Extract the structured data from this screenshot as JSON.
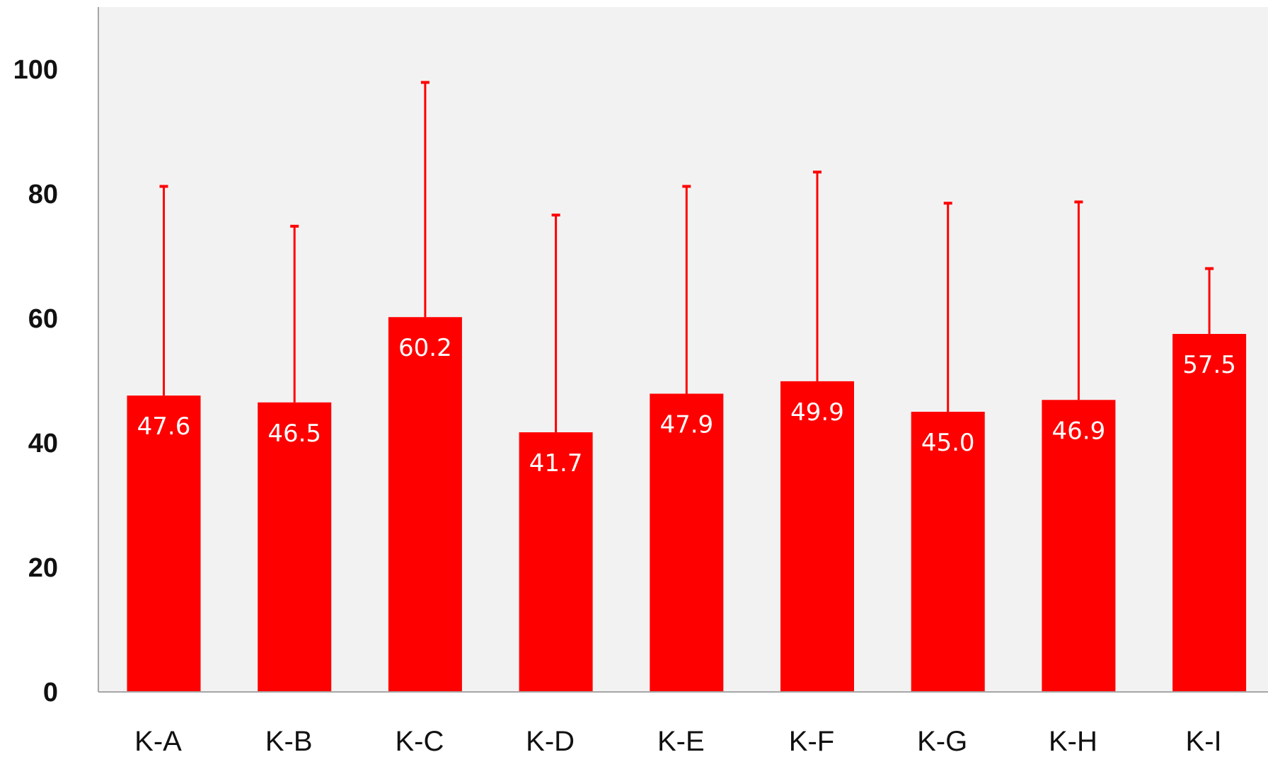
{
  "chart_data": {
    "type": "bar",
    "title": "",
    "xlabel": "",
    "ylabel": "",
    "categories": [
      "K-A",
      "K-B",
      "K-C",
      "K-D",
      "K-E",
      "K-F",
      "K-G",
      "K-H",
      "K-I"
    ],
    "series": [
      {
        "values": [
          47.6,
          46.5,
          60.2,
          41.7,
          47.9,
          49.9,
          45.0,
          46.9,
          57.5
        ],
        "value_labels": [
          "47.6",
          "46.5",
          "60.2",
          "41.7",
          "47.9",
          "49.9",
          "45.0",
          "46.9",
          "57.5"
        ],
        "error_upper": [
          81.2,
          74.8,
          97.9,
          76.6,
          81.2,
          83.5,
          78.5,
          78.7,
          68.0
        ]
      }
    ],
    "ylim": [
      0,
      110
    ],
    "yticks": [
      0,
      20,
      40,
      60,
      80,
      100
    ],
    "ytick_labels": [
      "0",
      "20",
      "40",
      "60",
      "80",
      "100"
    ],
    "grid": false,
    "legend": "none",
    "colors": {
      "bar": "#ff0000",
      "error_bar": "#ff0000",
      "plot_background": "#f2f2f2",
      "axis": "#a6a6a6",
      "data_label": "#ffffff"
    }
  }
}
